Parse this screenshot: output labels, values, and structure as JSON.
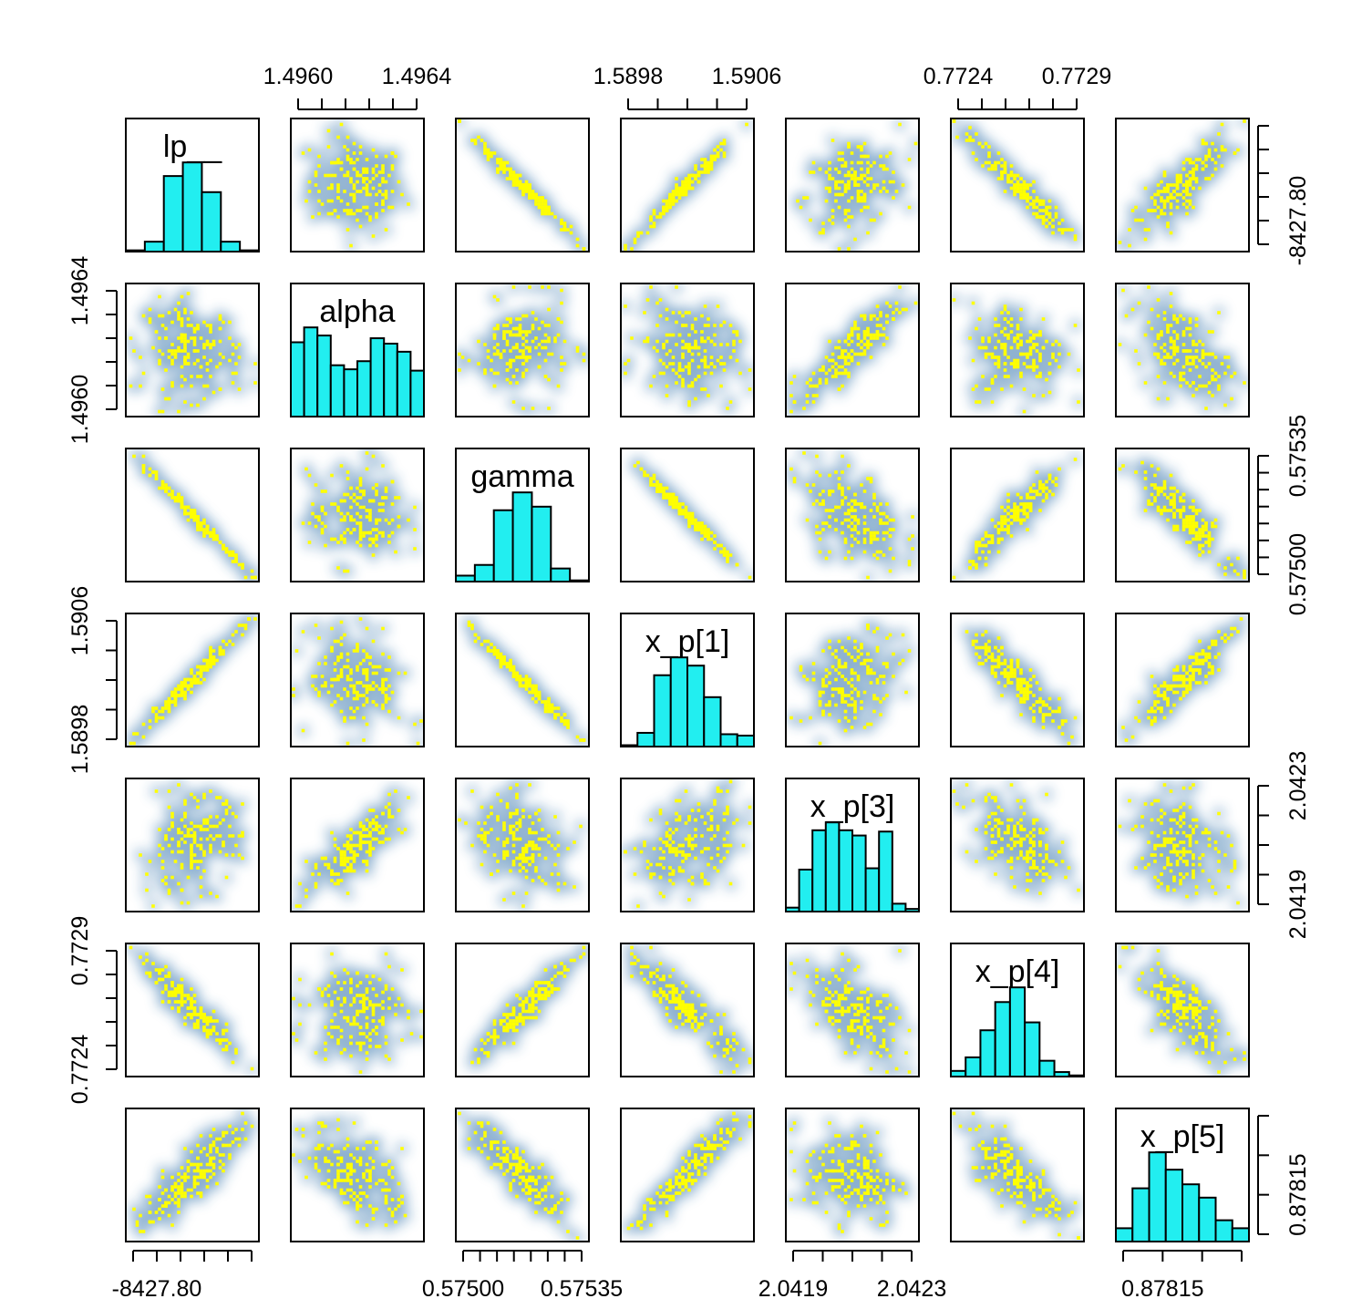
{
  "chart_data": {
    "type": "scatter",
    "subtype": "pairs-matrix",
    "variables": [
      "lp__",
      "alpha",
      "gamma",
      "x_p[1]",
      "x_p[3]",
      "x_p[4]",
      "x_p[5]"
    ],
    "diagonal": "histogram",
    "histogram_color": "#22eef0",
    "point_color": "#ffff00",
    "density_halo_color": "#2f6fa8",
    "axes": [
      {
        "var": "lp__",
        "side": "bottom-right",
        "tick_labels": [
          "-8427.80"
        ],
        "label_positions": [
          "bottom",
          "right"
        ],
        "tick_count": 6
      },
      {
        "var": "alpha",
        "side": "top-left",
        "tick_labels": [
          "1.4960",
          "1.4964"
        ],
        "label_positions": [
          "top",
          "left"
        ],
        "tick_count": 6
      },
      {
        "var": "gamma",
        "side": "bottom-right",
        "tick_labels": [
          "0.57500",
          "0.57535"
        ],
        "label_positions": [
          "bottom",
          "right"
        ],
        "tick_count": 8
      },
      {
        "var": "x_p[1]",
        "side": "top-left",
        "tick_labels": [
          "1.5898",
          "1.5906"
        ],
        "label_positions": [
          "top",
          "left"
        ],
        "tick_count": 5
      },
      {
        "var": "x_p[3]",
        "side": "bottom-right",
        "tick_labels": [
          "2.0419",
          "2.0423"
        ],
        "label_positions": [
          "bottom",
          "right"
        ],
        "tick_count": 5
      },
      {
        "var": "x_p[4]",
        "side": "top-left",
        "tick_labels": [
          "0.7724",
          "0.7729"
        ],
        "label_positions": [
          "top",
          "left"
        ],
        "tick_count": 6
      },
      {
        "var": "x_p[5]",
        "side": "bottom-right",
        "tick_labels": [
          "0.87815"
        ],
        "label_positions": [
          "bottom",
          "right"
        ],
        "tick_count": 4
      }
    ],
    "histograms": [
      {
        "var": "lp__",
        "counts": [
          1,
          8,
          61,
          72,
          48,
          8,
          1
        ]
      },
      {
        "var": "alpha",
        "counts": [
          55,
          66,
          60,
          38,
          35,
          41,
          58,
          54,
          48,
          34
        ]
      },
      {
        "var": "gamma",
        "counts": [
          5,
          14,
          60,
          75,
          63,
          11,
          1
        ]
      },
      {
        "var": "x_p[1]",
        "counts": [
          1,
          10,
          52,
          65,
          59,
          36,
          9,
          8
        ]
      },
      {
        "var": "x_p[3]",
        "counts": [
          3,
          32,
          62,
          68,
          62,
          58,
          33,
          61,
          6,
          2
        ]
      },
      {
        "var": "x_p[4]",
        "counts": [
          5,
          17,
          41,
          66,
          79,
          48,
          14,
          4,
          1
        ]
      },
      {
        "var": "x_p[5]",
        "counts": [
          10,
          40,
          67,
          54,
          43,
          33,
          16,
          10
        ]
      }
    ],
    "correlations": [
      [
        1.0,
        -0.1,
        -0.99,
        0.98,
        0.3,
        -0.95,
        0.85
      ],
      [
        -0.1,
        1.0,
        0.1,
        -0.2,
        0.85,
        0.0,
        -0.5
      ],
      [
        -0.99,
        0.1,
        1.0,
        -0.99,
        -0.35,
        0.93,
        -0.88
      ],
      [
        0.98,
        -0.2,
        -0.99,
        1.0,
        0.35,
        -0.9,
        0.9
      ],
      [
        0.3,
        0.85,
        -0.35,
        0.35,
        1.0,
        -0.55,
        -0.15
      ],
      [
        -0.95,
        0.0,
        0.93,
        -0.9,
        -0.55,
        1.0,
        -0.75
      ],
      [
        0.85,
        -0.5,
        -0.88,
        0.9,
        -0.15,
        -0.75,
        1.0
      ]
    ]
  }
}
